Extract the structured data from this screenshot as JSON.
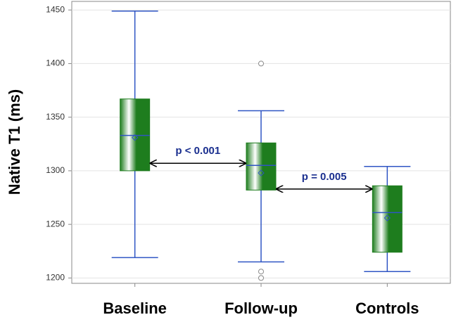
{
  "chart_data": {
    "type": "box",
    "y_label": "Native T1 (ms)",
    "categories": [
      "Baseline",
      "Follow-up",
      "Controls"
    ],
    "boxes": [
      {
        "min": 1219,
        "q1": 1300,
        "median": 1333,
        "q3": 1367,
        "max": 1449,
        "mean": 1331,
        "outliers": []
      },
      {
        "min": 1215,
        "q1": 1282,
        "median": 1305,
        "q3": 1326,
        "max": 1356,
        "mean": 1298,
        "outliers": [
          1400,
          1206,
          1200
        ]
      },
      {
        "min": 1206,
        "q1": 1224,
        "median": 1261,
        "q3": 1286,
        "max": 1304,
        "mean": 1256,
        "outliers": []
      }
    ],
    "box_color": "#1e7d1e",
    "line_color": "#2f55c4",
    "annotations": [
      {
        "text": "p < 0.001",
        "y": 1307
      },
      {
        "text": "p = 0.005",
        "y": 1283
      }
    ],
    "annotation_color": "#1a2f8f",
    "ylim": [
      1195,
      1458
    ],
    "yticks": [
      1200,
      1250,
      1300,
      1350,
      1400,
      1450
    ],
    "grid": true
  }
}
